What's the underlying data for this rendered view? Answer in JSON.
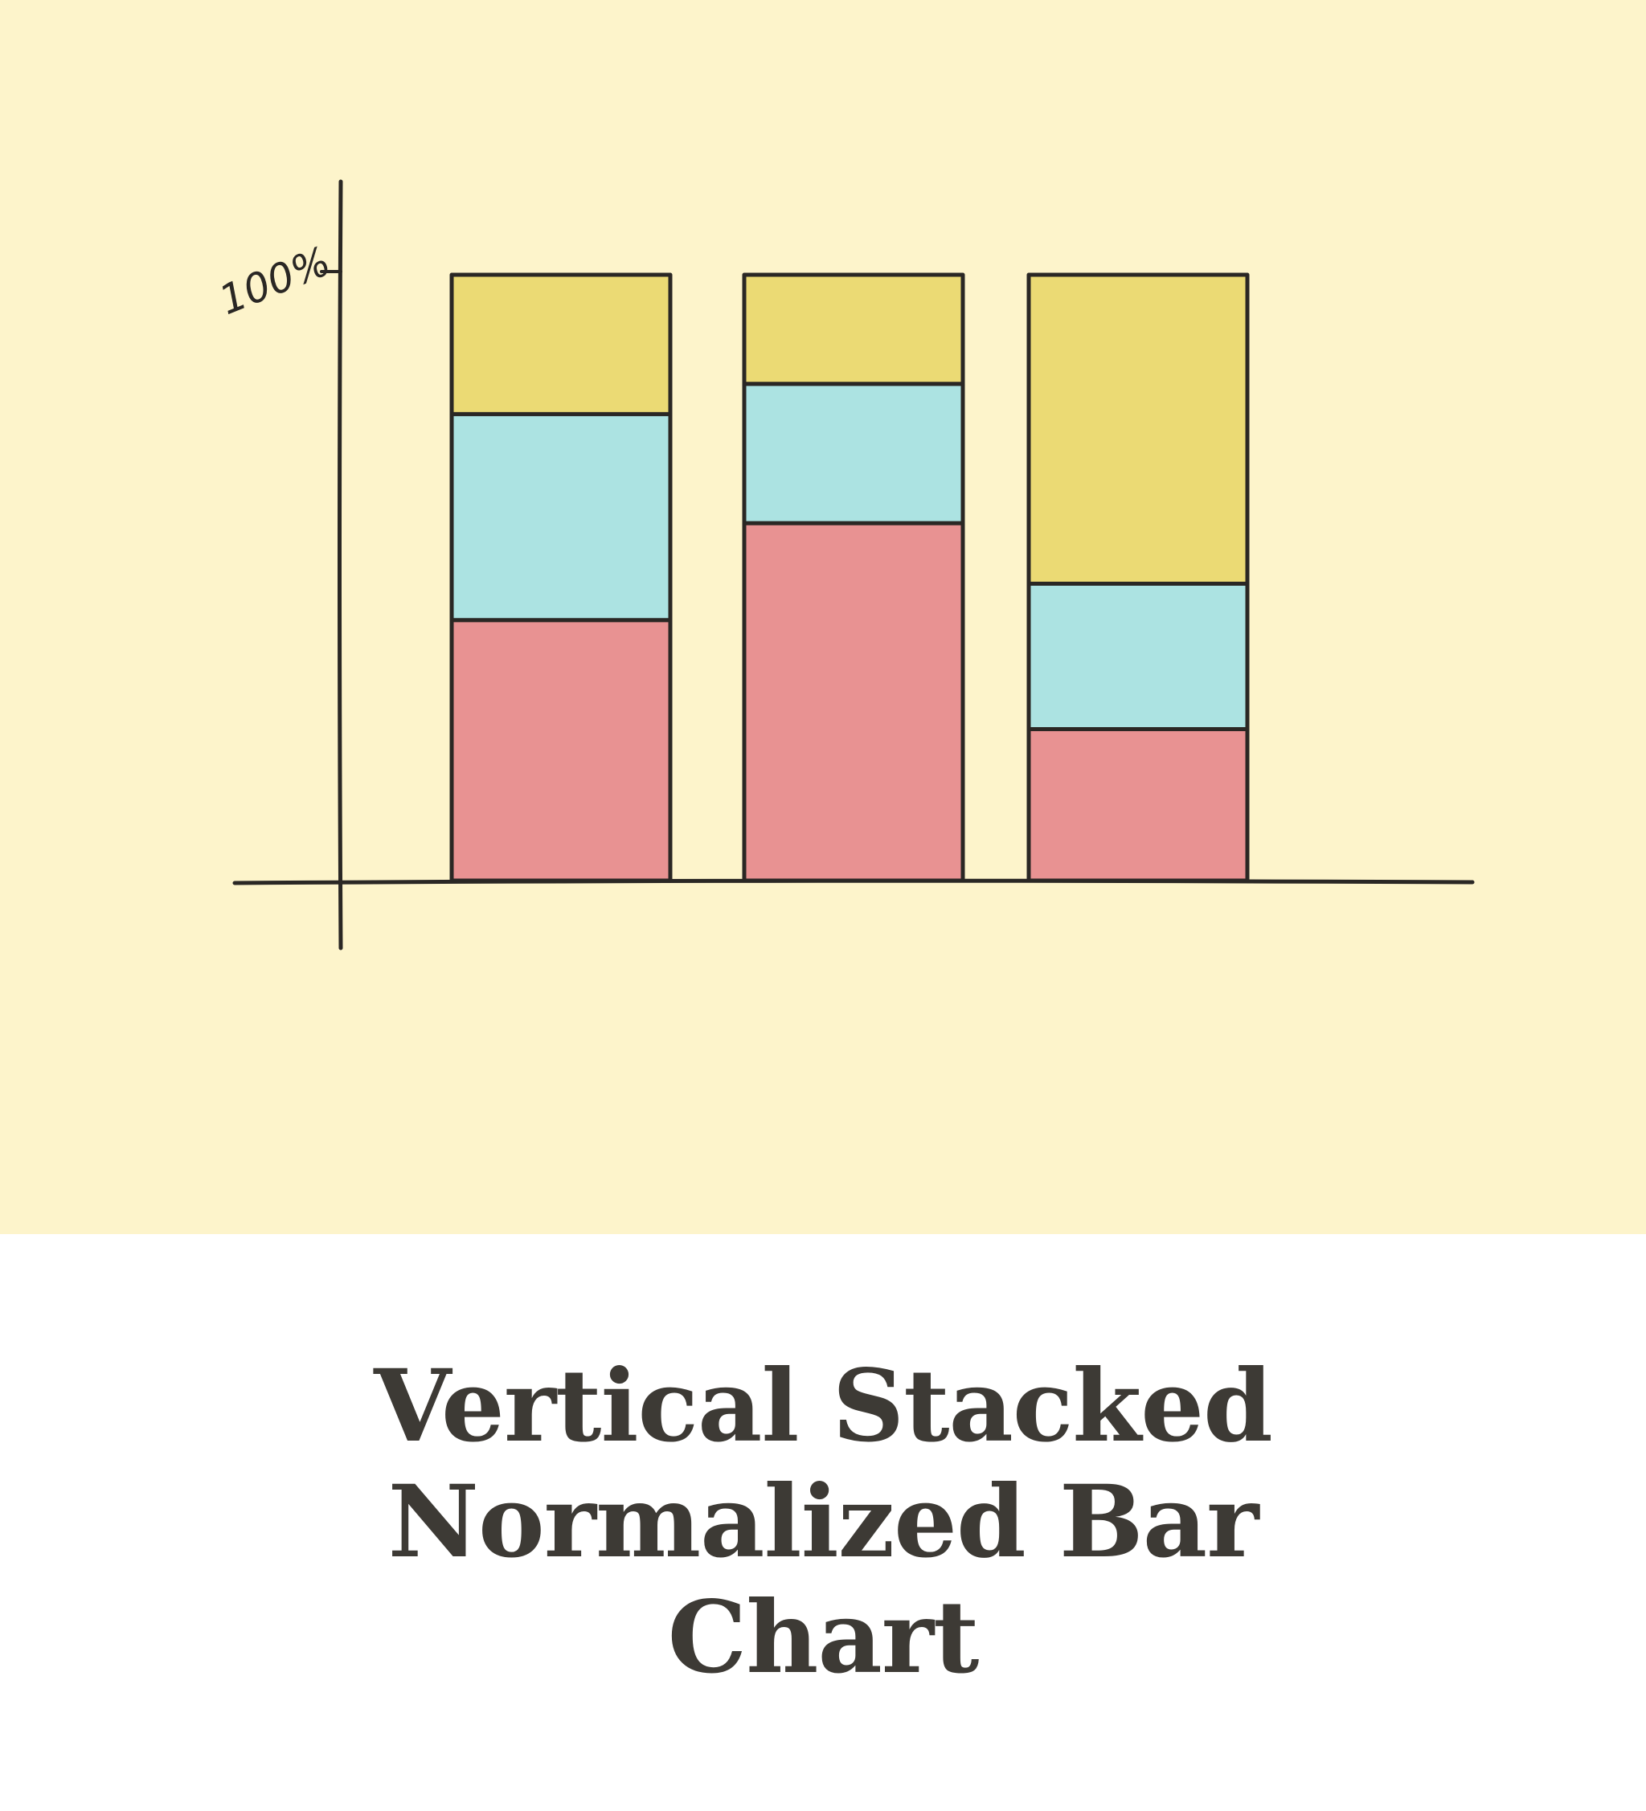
{
  "caption": {
    "title": "Vertical Stacked Normalized Bar Chart"
  },
  "colors": {
    "background": "#fdf4cb",
    "ink": "#2a2724",
    "segment_bottom": "#e89292",
    "segment_middle": "#ace3e2",
    "segment_top": "#ebda74",
    "title": "#3d3a35"
  },
  "chart_data": {
    "type": "bar",
    "stacked": true,
    "normalized": true,
    "categories": [
      "",
      "",
      ""
    ],
    "series": [
      {
        "color": "#e89292",
        "values": [
          43,
          59,
          25
        ]
      },
      {
        "color": "#ace3e2",
        "values": [
          34,
          23,
          24
        ]
      },
      {
        "color": "#ebda74",
        "values": [
          23,
          18,
          51
        ]
      }
    ],
    "yticks": [
      {
        "value": 100,
        "label": "100%"
      }
    ],
    "ylim": [
      0,
      100
    ],
    "grid": false,
    "legend": "none",
    "title": "",
    "xlabel": "",
    "ylabel": ""
  }
}
